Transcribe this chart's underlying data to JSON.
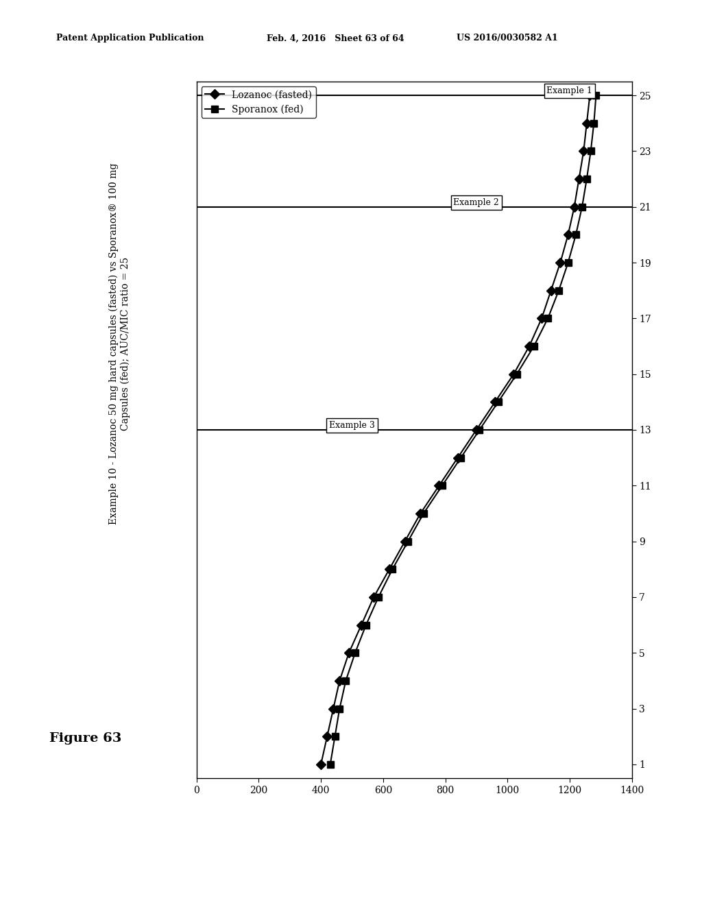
{
  "title": "Example 10 - Lozanoc 50 mg hard capsules (fasted) vs Sporanox® 100 mg\nCapsules (fed); AUC/MIC ratio = 25",
  "figure_label": "Figure 63",
  "header_left": "Patent Application Publication",
  "header_mid": "Feb. 4, 2016   Sheet 63 of 64",
  "header_right": "US 2016/0030582 A1",
  "legend_labels": [
    "Lozanoc (fasted)",
    "Sporanox (fed)"
  ],
  "x_ticks": [
    1,
    3,
    5,
    7,
    9,
    11,
    13,
    15,
    17,
    19,
    21,
    23,
    25
  ],
  "y_ticks": [
    0,
    200,
    400,
    600,
    800,
    1000,
    1200,
    1400
  ],
  "y_lim": [
    0,
    1400
  ],
  "x_lim": [
    0,
    26
  ],
  "lozanoc_x": [
    1,
    2,
    3,
    4,
    5,
    6,
    7,
    8,
    9,
    10,
    11,
    12,
    13,
    14,
    15,
    16,
    17,
    18,
    19,
    20,
    21,
    22,
    23,
    24,
    25
  ],
  "lozanoc_y": [
    400,
    420,
    440,
    460,
    490,
    530,
    570,
    620,
    670,
    720,
    780,
    840,
    900,
    960,
    1020,
    1070,
    1110,
    1140,
    1170,
    1195,
    1215,
    1230,
    1245,
    1255,
    1265
  ],
  "sporanox_x": [
    1,
    2,
    3,
    4,
    5,
    6,
    7,
    8,
    9,
    10,
    11,
    12,
    13,
    14,
    15,
    16,
    17,
    18,
    19,
    20,
    21,
    22,
    23,
    24,
    25
  ],
  "sporanox_y": [
    430,
    445,
    460,
    480,
    510,
    545,
    585,
    630,
    680,
    730,
    790,
    850,
    910,
    970,
    1030,
    1085,
    1130,
    1165,
    1195,
    1220,
    1240,
    1255,
    1268,
    1278,
    1285
  ],
  "example1_x": 25,
  "example2_x": 21,
  "example3_x": 13,
  "background_color": "#ffffff",
  "line_color": "#000000",
  "box_color": "#ffffff"
}
